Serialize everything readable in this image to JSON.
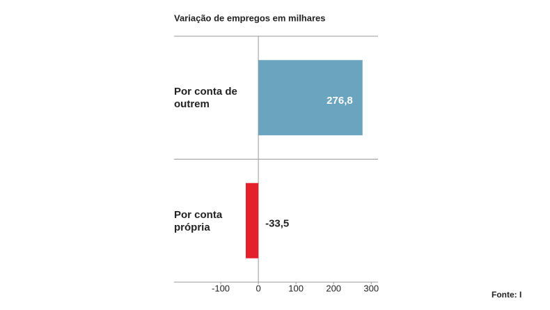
{
  "chart_data": {
    "type": "hbar",
    "title": "Variação de empregos em milhares",
    "categories": [
      "Por conta de outrem",
      "Por conta própria"
    ],
    "values": [
      276.8,
      -33.5
    ],
    "value_labels": [
      "276,8",
      "-33,5"
    ],
    "colors": [
      "#6aa4bf",
      "#e4202a"
    ],
    "xlim": [
      -224,
      318
    ],
    "xticks": [
      -100,
      0,
      100,
      200,
      300
    ],
    "source": "Fonte: I"
  }
}
